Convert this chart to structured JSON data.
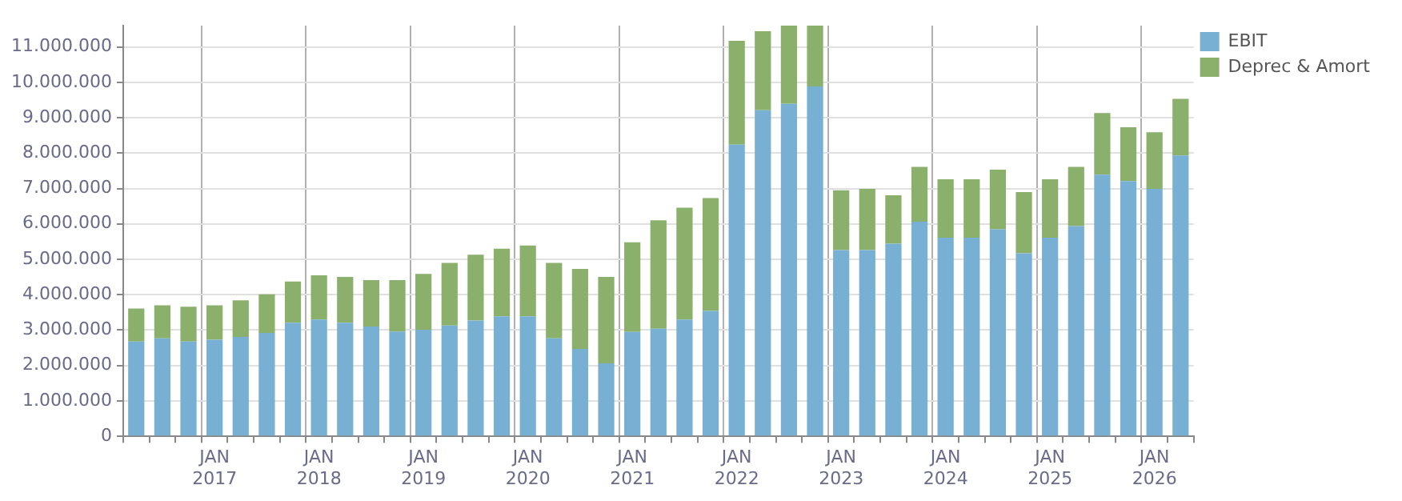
{
  "chart_data": {
    "type": "bar",
    "stacked": true,
    "grid": true,
    "legend": "top right",
    "categories": [
      null,
      null,
      null,
      "JAN 2017",
      null,
      null,
      null,
      "JAN 2018",
      null,
      null,
      null,
      "JAN 2019",
      null,
      null,
      null,
      "JAN 2020",
      null,
      null,
      null,
      "JAN 2021",
      null,
      null,
      null,
      "JAN 2022",
      null,
      null,
      null,
      "JAN 2023",
      null,
      null,
      null,
      "JAN 2024",
      null,
      null,
      null,
      "JAN 2025",
      null,
      null,
      null,
      "JAN 2026",
      null
    ],
    "series": [
      {
        "name": "EBIT",
        "color": "#78b0d3",
        "values": [
          2680000,
          2770000,
          2680000,
          2730000,
          2810000,
          2920000,
          3210000,
          3300000,
          3210000,
          3100000,
          2960000,
          3010000,
          3130000,
          3270000,
          3390000,
          3390000,
          2770000,
          2470000,
          2060000,
          2950000,
          3040000,
          3300000,
          3540000,
          8240000,
          9210000,
          9390000,
          9880000,
          5260000,
          5260000,
          5440000,
          6060000,
          5610000,
          5610000,
          5850000,
          5170000,
          5610000,
          5940000,
          7390000,
          7210000,
          6990000,
          7930000
        ]
      },
      {
        "name": "Deprec & Amort",
        "color": "#8ab06b",
        "values": [
          930000,
          930000,
          980000,
          970000,
          1030000,
          1090000,
          1160000,
          1250000,
          1290000,
          1310000,
          1450000,
          1580000,
          1770000,
          1860000,
          1910000,
          2000000,
          2130000,
          2260000,
          2440000,
          2530000,
          3060000,
          3160000,
          3190000,
          2930000,
          2230000,
          2210000,
          1720000,
          1690000,
          1730000,
          1370000,
          1550000,
          1650000,
          1650000,
          1680000,
          1730000,
          1650000,
          1670000,
          1740000,
          1520000,
          1600000,
          1600000
        ]
      }
    ],
    "ylim": [
      0,
      11600000
    ],
    "yticks": [
      0,
      {
        "value": 1000000,
        "label": "1.000.000"
      },
      {
        "value": 2000000,
        "label": "2.000.000"
      },
      {
        "value": 3000000,
        "label": "3.000.000"
      },
      {
        "value": 4000000,
        "label": "4.000.000"
      },
      {
        "value": 5000000,
        "label": "5.000.000"
      },
      {
        "value": 6000000,
        "label": "6.000.000"
      },
      {
        "value": 7000000,
        "label": "7.000.000"
      },
      {
        "value": 8000000,
        "label": "8.000.000"
      },
      {
        "value": 9000000,
        "label": "9.000.000"
      },
      {
        "value": 10000000,
        "label": "10.000.000"
      },
      {
        "value": 11000000,
        "label": "11.000.000"
      }
    ]
  }
}
